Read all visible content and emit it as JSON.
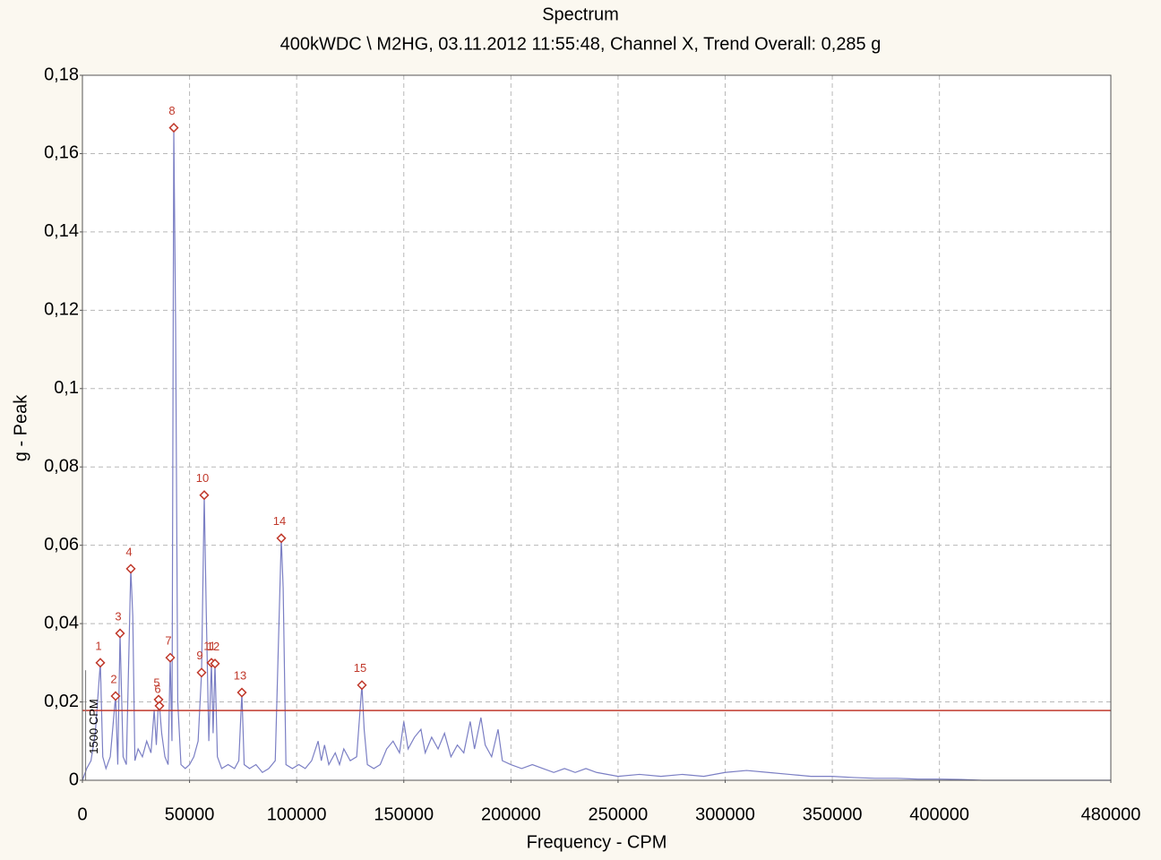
{
  "chart_data": {
    "type": "line",
    "title": "Spectrum",
    "subtitle": "400kWDC \\ M2HG, 03.11.2012 11:55:48, Channel X, Trend Overall: 0,285 g",
    "x_label": "Frequency - CPM",
    "y_label": "g - Peak",
    "xlim": [
      0,
      480000
    ],
    "xticks": [
      0,
      50000,
      100000,
      150000,
      200000,
      250000,
      300000,
      350000,
      400000,
      480000
    ],
    "ylim": [
      0,
      0.18
    ],
    "yticks": [
      0,
      {
        "value": 0.02,
        "label": "0,02"
      },
      {
        "value": 0.04,
        "label": "0,04"
      },
      {
        "value": 0.06,
        "label": "0,06"
      },
      {
        "value": 0.08,
        "label": "0,08"
      },
      {
        "value": 0.1,
        "label": "0,1"
      },
      {
        "value": 0.12,
        "label": "0,12"
      },
      {
        "value": 0.14,
        "label": "0,14"
      },
      {
        "value": 0.16,
        "label": "0,16"
      },
      {
        "value": 0.18,
        "label": "0,18"
      }
    ],
    "grid": true,
    "threshold": {
      "value": 0.0178,
      "color": "#c0392b"
    },
    "annotation": {
      "text": "1500 CPM",
      "x": 1500
    },
    "series": [
      {
        "color": "#7b7fc4",
        "x": [
          0,
          2000,
          4000,
          6000,
          8362,
          9500,
          11000,
          13000,
          15470,
          16500,
          17560,
          19000,
          20500,
          22580,
          23500,
          24500,
          26000,
          28000,
          30000,
          32000,
          33500,
          34500,
          35540,
          35960,
          37000,
          38500,
          40000,
          40980,
          41800,
          42650,
          43500,
          44500,
          46000,
          48000,
          50000,
          52000,
          54000,
          55610,
          56860,
          57800,
          59000,
          60210,
          61000,
          61880,
          63000,
          65000,
          68000,
          71000,
          73000,
          74420,
          75500,
          78000,
          81000,
          84000,
          87000,
          90000,
          92820,
          93700,
          95000,
          98000,
          101000,
          104000,
          107000,
          110000,
          111500,
          113000,
          115000,
          118000,
          120000,
          122000,
          125000,
          128000,
          130450,
          131500,
          133000,
          136000,
          139000,
          142000,
          145000,
          148000,
          150000,
          152000,
          155000,
          158000,
          160000,
          163000,
          166000,
          169000,
          172000,
          175000,
          178000,
          181000,
          183000,
          186000,
          188000,
          191000,
          194000,
          196000,
          200000,
          205000,
          210000,
          215000,
          220000,
          225000,
          230000,
          235000,
          240000,
          250000,
          260000,
          270000,
          280000,
          290000,
          300000,
          310000,
          320000,
          330000,
          340000,
          350000,
          360000,
          370000,
          380000,
          390000,
          400000,
          410000,
          420000,
          480000
        ],
        "values": [
          0,
          0.003,
          0.005,
          0.012,
          0.03,
          0.006,
          0.003,
          0.006,
          0.0215,
          0.004,
          0.0375,
          0.006,
          0.004,
          0.054,
          0.042,
          0.005,
          0.008,
          0.006,
          0.01,
          0.007,
          0.018,
          0.009,
          0.0206,
          0.019,
          0.012,
          0.006,
          0.004,
          0.0313,
          0.01,
          0.1666,
          0.116,
          0.02,
          0.004,
          0.003,
          0.004,
          0.006,
          0.01,
          0.0275,
          0.0728,
          0.043,
          0.01,
          0.03,
          0.012,
          0.0298,
          0.006,
          0.003,
          0.004,
          0.003,
          0.005,
          0.0224,
          0.004,
          0.003,
          0.004,
          0.002,
          0.003,
          0.005,
          0.0618,
          0.049,
          0.004,
          0.003,
          0.004,
          0.003,
          0.005,
          0.01,
          0.005,
          0.009,
          0.004,
          0.007,
          0.004,
          0.008,
          0.005,
          0.006,
          0.0243,
          0.013,
          0.004,
          0.003,
          0.004,
          0.008,
          0.01,
          0.007,
          0.015,
          0.008,
          0.011,
          0.013,
          0.007,
          0.011,
          0.008,
          0.012,
          0.006,
          0.009,
          0.007,
          0.015,
          0.008,
          0.016,
          0.009,
          0.006,
          0.013,
          0.005,
          0.004,
          0.003,
          0.004,
          0.003,
          0.002,
          0.003,
          0.002,
          0.003,
          0.002,
          0.001,
          0.0015,
          0.001,
          0.0015,
          0.001,
          0.002,
          0.0025,
          0.002,
          0.0015,
          0.001,
          0.001,
          0.0007,
          0.0005,
          0.0005,
          0.0003,
          0.0003,
          0.0002,
          0,
          0
        ]
      },
      {
        "color": "#c0392b",
        "labels": [
          "1",
          "2",
          "3",
          "4",
          "5",
          "6",
          "7",
          "8",
          "9",
          "10",
          "11",
          "12",
          "13",
          "14",
          "15"
        ],
        "x": [
          8362,
          15470,
          17560,
          22580,
          35540,
          35960,
          40980,
          42650,
          55610,
          56860,
          60210,
          61880,
          74420,
          92820,
          130450
        ],
        "values": [
          0.03,
          0.0215,
          0.0375,
          0.054,
          0.0206,
          0.019,
          0.0313,
          0.1666,
          0.0275,
          0.0728,
          0.03,
          0.0298,
          0.0224,
          0.0618,
          0.0243
        ]
      }
    ]
  }
}
